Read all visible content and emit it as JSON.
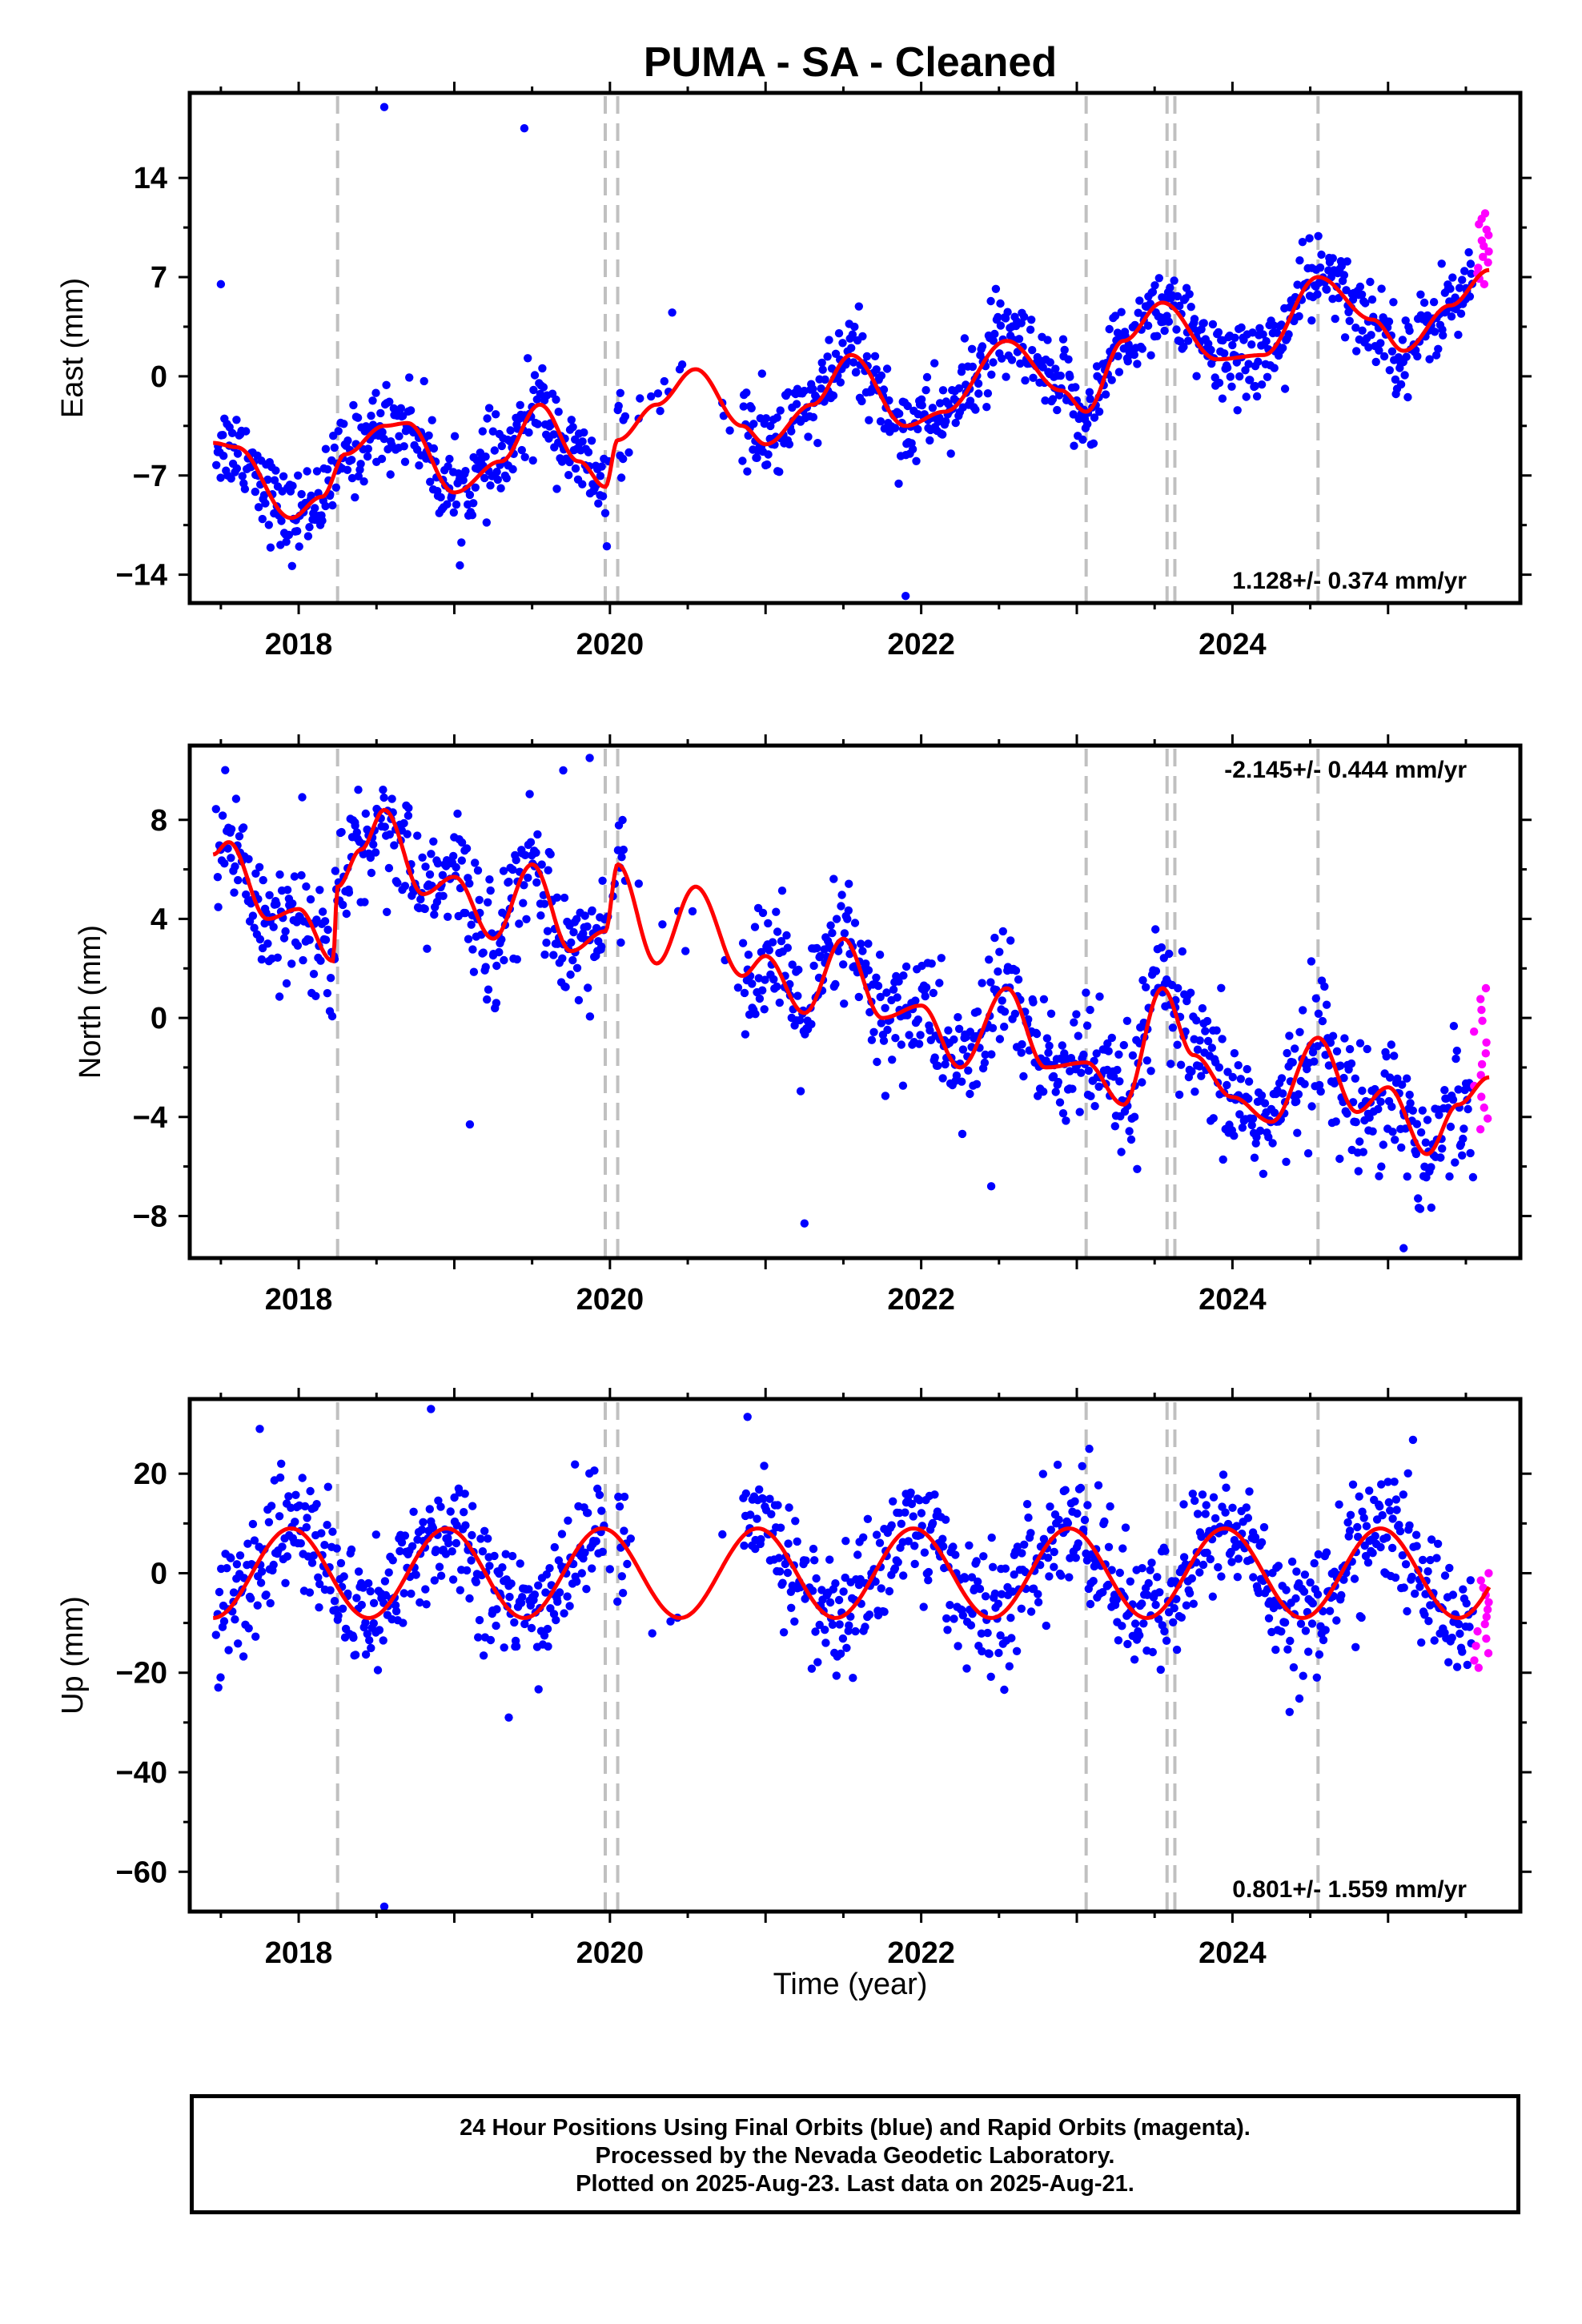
{
  "title": "PUMA  - SA - Cleaned",
  "x_axis_label": "Time (year)",
  "footer": {
    "line1": "24 Hour Positions Using Final Orbits (blue) and Rapid Orbits (magenta).",
    "line2": "Processed by the Nevada Geodetic Laboratory.",
    "line3": "Plotted on 2025-Aug-23. Last data on 2025-Aug-21."
  },
  "colors": {
    "final_orbits": "#0000ff",
    "rapid_orbits": "#ff00ff",
    "model_fit": "#ff0000",
    "event_lines": "#c0c0c0",
    "frame": "#000000"
  },
  "chart_data": [
    {
      "type": "scatter",
      "panel": "east",
      "ylabel": "East (mm)",
      "xlim": [
        2017.3,
        2025.85
      ],
      "ylim": [
        -16,
        20
      ],
      "x_ticks": [
        2018,
        2020,
        2022,
        2024
      ],
      "x_tick_labels": [
        "2018",
        "2020",
        "2022",
        "2024"
      ],
      "y_ticks": [
        14,
        7,
        0,
        -7,
        -14
      ],
      "y_tick_labels": [
        "14",
        "7",
        "0",
        "−7",
        "−14"
      ],
      "rate_label": "1.128+/- 0.374 mm/yr",
      "rate_position": "bottom-right",
      "event_lines": [
        2018.25,
        2019.97,
        2020.05,
        2023.06,
        2023.58,
        2023.63,
        2024.55
      ],
      "model_anchors": {
        "x": [
          2017.45,
          2017.6,
          2017.95,
          2018.15,
          2018.3,
          2018.55,
          2018.7,
          2019.0,
          2019.3,
          2019.55,
          2019.8,
          2019.97,
          2020.05,
          2020.3,
          2020.55,
          2020.85,
          2021.0,
          2021.3,
          2021.55,
          2021.9,
          2022.15,
          2022.55,
          2022.9,
          2023.06,
          2023.3,
          2023.55,
          2023.9,
          2024.2,
          2024.55,
          2024.9,
          2025.1,
          2025.4,
          2025.65
        ],
        "y": [
          -4.7,
          -5,
          -10,
          -8.5,
          -5.5,
          -3.5,
          -3.3,
          -8.2,
          -6,
          -2,
          -6,
          -7.8,
          -4.5,
          -2,
          0.5,
          -3.5,
          -4.8,
          -2,
          1.5,
          -3.5,
          -2.5,
          2.5,
          -1,
          -2.5,
          2.5,
          5.2,
          1.2,
          1.5,
          7,
          4,
          1.8,
          5,
          7.5
        ]
      },
      "outliers": [
        {
          "x": 2017.5,
          "y": 6.5
        },
        {
          "x": 2018.55,
          "y": 19
        },
        {
          "x": 2019.45,
          "y": 17.5
        },
        {
          "x": 2019.98,
          "y": -12
        },
        {
          "x": 2021.9,
          "y": -15.5
        },
        {
          "x": 2020.4,
          "y": 4.5
        }
      ],
      "rapid_orbits": {
        "x_range": [
          2025.55,
          2025.65
        ],
        "y_range": [
          6.5,
          11.5
        ]
      }
    },
    {
      "type": "scatter",
      "panel": "north",
      "ylabel": "North (mm)",
      "xlim": [
        2017.3,
        2025.85
      ],
      "ylim": [
        -9.7,
        11
      ],
      "x_ticks": [
        2018,
        2020,
        2022,
        2024
      ],
      "x_tick_labels": [
        "2018",
        "2020",
        "2022",
        "2024"
      ],
      "y_ticks": [
        8,
        4,
        0,
        -4,
        -8
      ],
      "y_tick_labels": [
        "8",
        "4",
        "0",
        "−4",
        "−8"
      ],
      "rate_label": "-2.145+/- 0.444 mm/yr",
      "rate_position": "top-right",
      "event_lines": [
        2018.25,
        2019.97,
        2020.05,
        2023.06,
        2023.58,
        2023.63,
        2024.55
      ],
      "model_anchors": {
        "x": [
          2017.45,
          2017.55,
          2017.8,
          2018.0,
          2018.22,
          2018.25,
          2018.4,
          2018.55,
          2018.8,
          2019.0,
          2019.25,
          2019.5,
          2019.75,
          2019.97,
          2020.05,
          2020.3,
          2020.55,
          2020.85,
          2021.0,
          2021.25,
          2021.5,
          2021.75,
          2022.0,
          2022.25,
          2022.55,
          2022.8,
          2023.06,
          2023.3,
          2023.55,
          2023.75,
          2024.0,
          2024.25,
          2024.55,
          2024.8,
          2025.0,
          2025.25,
          2025.45,
          2025.65
        ],
        "y": [
          6.6,
          7.1,
          4,
          4.4,
          2.3,
          5.3,
          6.8,
          8.4,
          5,
          5.7,
          3.2,
          6.2,
          2.7,
          3.5,
          6.2,
          2.2,
          5.3,
          1.7,
          2.5,
          0.2,
          3.2,
          0,
          0.5,
          -2,
          1.2,
          -2,
          -1.8,
          -3.5,
          1.2,
          -1.5,
          -3.2,
          -4.2,
          -0.8,
          -3.8,
          -2.8,
          -5.5,
          -3.5,
          -2.4
        ]
      },
      "outliers": [
        {
          "x": 2019.7,
          "y": 10
        },
        {
          "x": 2019.87,
          "y": 10.5
        },
        {
          "x": 2019.1,
          "y": -4.3
        },
        {
          "x": 2021.25,
          "y": -8.3
        },
        {
          "x": 2025.1,
          "y": -9.3
        },
        {
          "x": 2022.45,
          "y": -6.8
        }
      ],
      "rapid_orbits": {
        "x_range": [
          2025.55,
          2025.65
        ],
        "y_range": [
          -4.5,
          1.2
        ]
      }
    },
    {
      "type": "scatter",
      "panel": "up",
      "ylabel": "Up (mm)",
      "xlabel": "Time (year)",
      "xlim": [
        2017.3,
        2025.85
      ],
      "ylim": [
        -68,
        35
      ],
      "x_ticks": [
        2018,
        2020,
        2022,
        2024
      ],
      "x_tick_labels": [
        "2018",
        "2020",
        "2022",
        "2024"
      ],
      "y_ticks": [
        20,
        0,
        -20,
        -40,
        -60
      ],
      "y_tick_labels": [
        "20",
        "0",
        "−20",
        "−40",
        "−60"
      ],
      "rate_label": "0.801+/- 1.559 mm/yr",
      "rate_position": "bottom-right",
      "event_lines": [
        2018.25,
        2019.97,
        2020.05,
        2023.06,
        2023.58,
        2023.63,
        2024.55
      ],
      "seasonal_model": {
        "amplitude": 9,
        "phase_peak_year": 2017.95,
        "offset": 0
      },
      "outliers": [
        {
          "x": 2018.55,
          "y": -67
        },
        {
          "x": 2019.35,
          "y": -29
        },
        {
          "x": 2018.85,
          "y": 33
        },
        {
          "x": 2017.75,
          "y": 29
        },
        {
          "x": 2023.08,
          "y": 25
        }
      ],
      "rapid_orbits": {
        "x_range": [
          2025.55,
          2025.65
        ],
        "y_range": [
          -19,
          0
        ]
      }
    }
  ]
}
